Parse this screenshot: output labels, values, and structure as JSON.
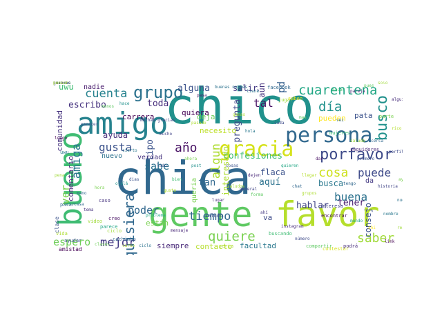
{
  "title": "",
  "words": [
    {
      "text": "chica",
      "color": "#31688e"
    },
    {
      "text": "chico",
      "color": "#21918c"
    },
    {
      "text": "favor",
      "color": "#b5de2b"
    },
    {
      "text": "gente",
      "color": "#5ec962"
    },
    {
      "text": "amigo",
      "color": "#26828e"
    },
    {
      "text": "bueno",
      "color": "#3fbc73"
    },
    {
      "text": "gracia",
      "color": "#d5e21a"
    },
    {
      "text": "persona",
      "color": "#31688e"
    },
    {
      "text": "grupo",
      "color": "#2c728e"
    },
    {
      "text": "porfavor",
      "color": "#3e4a89"
    },
    {
      "text": "cuarentena",
      "color": "#22a785"
    },
    {
      "text": "quisiera",
      "color": "#31688e"
    },
    {
      "text": "quiere",
      "color": "#7ad151"
    },
    {
      "text": "saber",
      "color": "#a0da39"
    },
    {
      "text": "tiempo",
      "color": "#31688e"
    },
    {
      "text": "cuenta",
      "color": "#26828e"
    },
    {
      "text": "busco",
      "color": "#21918c"
    },
    {
      "text": "buena",
      "color": "#2c728e"
    },
    {
      "text": "gusta",
      "color": "#3b528b"
    },
    {
      "text": "día",
      "color": "#21918c"
    },
    {
      "text": "cosa",
      "color": "#cde11d"
    },
    {
      "text": "puede",
      "color": "#3e4a89"
    },
    {
      "text": "mejor",
      "color": "#443983"
    },
    {
      "text": "año",
      "color": "#471063"
    },
    {
      "text": "amiga",
      "color": "#2a788e"
    },
    {
      "text": "espero",
      "color": "#6ece58"
    },
    {
      "text": "ver",
      "color": "#7ad151"
    },
    {
      "text": "sabe",
      "color": "#2c728e"
    },
    {
      "text": "poder",
      "color": "#31688e"
    },
    {
      "text": "alguna",
      "color": "#3b528b"
    },
    {
      "text": "toda",
      "color": "#472d7b"
    },
    {
      "text": "hablar",
      "color": "#414487"
    },
    {
      "text": "tener",
      "color": "#481b6d"
    },
    {
      "text": "escribo",
      "color": "#46337f"
    },
    {
      "text": "confesiones",
      "color": "#3fbc73"
    },
    {
      "text": "algun",
      "color": "#addc30"
    },
    {
      "text": "ayuda",
      "color": "#472d7b"
    },
    {
      "text": "uwu",
      "color": "#3fbc73"
    },
    {
      "text": "salir",
      "color": "#443983"
    },
    {
      "text": "pregunta",
      "color": "#3e4a89"
    },
    {
      "text": "pd",
      "color": "#355f8d"
    },
    {
      "text": "aquí",
      "color": "#2c728e"
    },
    {
      "text": "flaca",
      "color": "#3b528b"
    },
    {
      "text": "facultad",
      "color": "#2a788e"
    },
    {
      "text": "contacto",
      "color": "#b5de2b"
    },
    {
      "text": "siempre",
      "color": "#482878"
    },
    {
      "text": "consejo",
      "color": "#3b528b"
    },
    {
      "text": "deja",
      "color": "#6ece58"
    },
    {
      "text": "interesado",
      "color": "#addc30"
    },
    {
      "text": "tal",
      "color": "#471063"
    },
    {
      "text": "tan",
      "color": "#31688e"
    },
    {
      "text": "va",
      "color": "#3e4a89"
    },
    {
      "text": "aún",
      "color": "#46337f"
    },
    {
      "text": "busca",
      "color": "#2a788e"
    },
    {
      "text": "carrera",
      "color": "#440154"
    },
    {
      "text": "comentario",
      "color": "#482878"
    },
    {
      "text": "comunidad",
      "color": "#46337f"
    },
    {
      "text": "nuevo",
      "color": "#2c728e"
    },
    {
      "text": "verdad",
      "color": "#46337f"
    },
    {
      "text": "están",
      "color": "#7ad151"
    },
    {
      "text": "quiera",
      "color": "#440154"
    },
    {
      "text": "tipo",
      "color": "#3b528b"
    },
    {
      "text": "necesito",
      "color": "#bddf26"
    },
    {
      "text": "pueden",
      "color": "#fde725"
    },
    {
      "text": "pata",
      "color": "#3b528b"
    },
    {
      "text": "nadie",
      "color": "#481b6d"
    },
    {
      "text": "amistad",
      "color": "#440154"
    },
    {
      "text": "clase",
      "color": "#3b528b"
    },
    {
      "text": "queria",
      "color": "#7ad151"
    },
    {
      "text": "da",
      "color": "#443983"
    },
    {
      "text": "facebook",
      "color": "#31688e"
    },
    {
      "text": "jugar",
      "color": "#a0da39"
    },
    {
      "text": "saben",
      "color": "#e5e419"
    },
    {
      "text": "video",
      "color": "#a0da39"
    },
    {
      "text": "parece",
      "color": "#22a785"
    },
    {
      "text": "ciclo",
      "color": "#a0da39"
    },
    {
      "text": "vida",
      "color": "#addc30"
    },
    {
      "text": "saludo",
      "color": "#3e4a89"
    },
    {
      "text": "encontrar",
      "color": "#471063"
    },
    {
      "text": "compartir",
      "color": "#5ec962"
    },
    {
      "text": "seguidores",
      "color": "#482878"
    },
    {
      "text": "buscando",
      "color": "#3fbc73"
    },
    {
      "text": "creo",
      "color": "#471063"
    },
    {
      "text": "interesa",
      "color": "#414487"
    },
    {
      "text": "mujeres",
      "color": "#3fbc73"
    },
    {
      "text": "muchas gracias",
      "color": "#414487"
    },
    {
      "text": "caso",
      "color": "#46337f"
    },
    {
      "text": "pasar",
      "color": "#31688e"
    },
    {
      "text": "seria",
      "color": "#addc30"
    },
    {
      "text": "historia",
      "color": "#414487"
    },
    {
      "text": "contestar",
      "color": "#d5e21a"
    },
    {
      "text": "ayudar",
      "color": "#3b528b"
    },
    {
      "text": "cachimbo",
      "color": "#31688e"
    },
    {
      "text": "uwu",
      "color": "#2a788e"
    },
    {
      "text": "parte",
      "color": "#7ad151"
    },
    {
      "text": "podrá",
      "color": "#472d7b"
    },
    {
      "text": "dejen",
      "color": "#482878"
    },
    {
      "text": "ahí",
      "color": "#443983"
    },
    {
      "text": "buenas noches",
      "color": "#2c728e"
    },
    {
      "text": "problema",
      "color": "#22a785"
    },
    {
      "text": "lado",
      "color": "#3b528b"
    },
    {
      "text": "hace",
      "color": "#21918c"
    },
    {
      "text": "bien",
      "color": "#3fbc73"
    },
    {
      "text": "pasa",
      "color": "#481b6d"
    },
    {
      "text": "ganas",
      "color": "#addc30"
    },
    {
      "text": "hola",
      "color": "#2a788e"
    },
    {
      "text": "cada",
      "color": "#3e4a89"
    },
    {
      "text": "mas",
      "color": "#5ec962"
    },
    {
      "text": "vez",
      "color": "#31688e"
    },
    {
      "text": "solo",
      "color": "#a0da39"
    },
    {
      "text": "alguien",
      "color": "#472d7b"
    },
    {
      "text": "rico",
      "color": "#b5de2b"
    },
    {
      "text": "perfil",
      "color": "#3e4a89"
    },
    {
      "text": "nombre",
      "color": "#2a788e"
    },
    {
      "text": "link",
      "color": "#440154"
    },
    {
      "text": "casa",
      "color": "#31688e"
    },
    {
      "text": "tema",
      "color": "#46337f"
    },
    {
      "text": "clases",
      "color": "#6ece58"
    },
    {
      "text": "curso",
      "color": "#addc30"
    },
    {
      "text": "ciclo",
      "color": "#2c728e"
    },
    {
      "text": "mensaje",
      "color": "#482878"
    },
    {
      "text": "ahora",
      "color": "#7ad151"
    },
    {
      "text": "post",
      "color": "#21918c"
    },
    {
      "text": "cosas",
      "color": "#3b528b"
    },
    {
      "text": "saludos",
      "color": "#a0da39"
    },
    {
      "text": "general",
      "color": "#414487"
    },
    {
      "text": "forma",
      "color": "#5ec962"
    },
    {
      "text": "chat",
      "color": "#31688e"
    },
    {
      "text": "grupos",
      "color": "#addc30"
    },
    {
      "text": "instagram",
      "color": "#472d7b"
    },
    {
      "text": "número",
      "color": "#3e4a89"
    },
    {
      "text": "mundo",
      "color": "#22a785"
    },
    {
      "text": "ahi",
      "color": "#fde725"
    },
    {
      "text": "dar",
      "color": "#471063"
    },
    {
      "text": "saludo",
      "color": "#a0da39"
    },
    {
      "text": "cerca",
      "color": "#31688e"
    },
    {
      "text": "hacer",
      "color": "#3fbc73"
    },
    {
      "text": "pareja",
      "color": "#482878"
    },
    {
      "text": "pues",
      "color": "#5ec962"
    },
    {
      "text": "tiene",
      "color": "#2c728e"
    },
    {
      "text": "pasado",
      "color": "#addc30"
    },
    {
      "text": "mucho",
      "color": "#414487"
    },
    {
      "text": "dias",
      "color": "#3b528b"
    },
    {
      "text": "ojalá",
      "color": "#21918c"
    },
    {
      "text": "hora",
      "color": "#7ad151"
    },
    {
      "text": "mano",
      "color": "#31688e"
    },
    {
      "text": "pena",
      "color": "#a0da39"
    },
    {
      "text": "luego",
      "color": "#440154"
    },
    {
      "text": "parecer",
      "color": "#3e4a89"
    },
    {
      "text": "menos",
      "color": "#5ec962"
    },
    {
      "text": "cierto",
      "color": "#2a788e"
    },
    {
      "text": "gusto",
      "color": "#addc30"
    },
    {
      "text": "lugar",
      "color": "#472d7b"
    },
    {
      "text": "quieren",
      "color": "#22a785"
    },
    {
      "text": "llegar",
      "color": "#b5de2b"
    },
    {
      "text": "tengo",
      "color": "#31688e"
    },
    {
      "text": "primero",
      "color": "#3b528b"
    },
    {
      "text": "ayudame",
      "color": "#7ad151"
    },
    {
      "text": "nuevos",
      "color": "#2c728e"
    },
    {
      "text": "respuesta",
      "color": "#a0da39"
    },
    {
      "text": "noche",
      "color": "#414487"
    },
    {
      "text": "gracias",
      "color": "#21918c"
    },
    {
      "text": "hacerlo",
      "color": "#5ec962"
    },
    {
      "text": "quieres",
      "color": "#482878"
    },
    {
      "text": "pensar",
      "color": "#addc30"
    }
  ]
}
